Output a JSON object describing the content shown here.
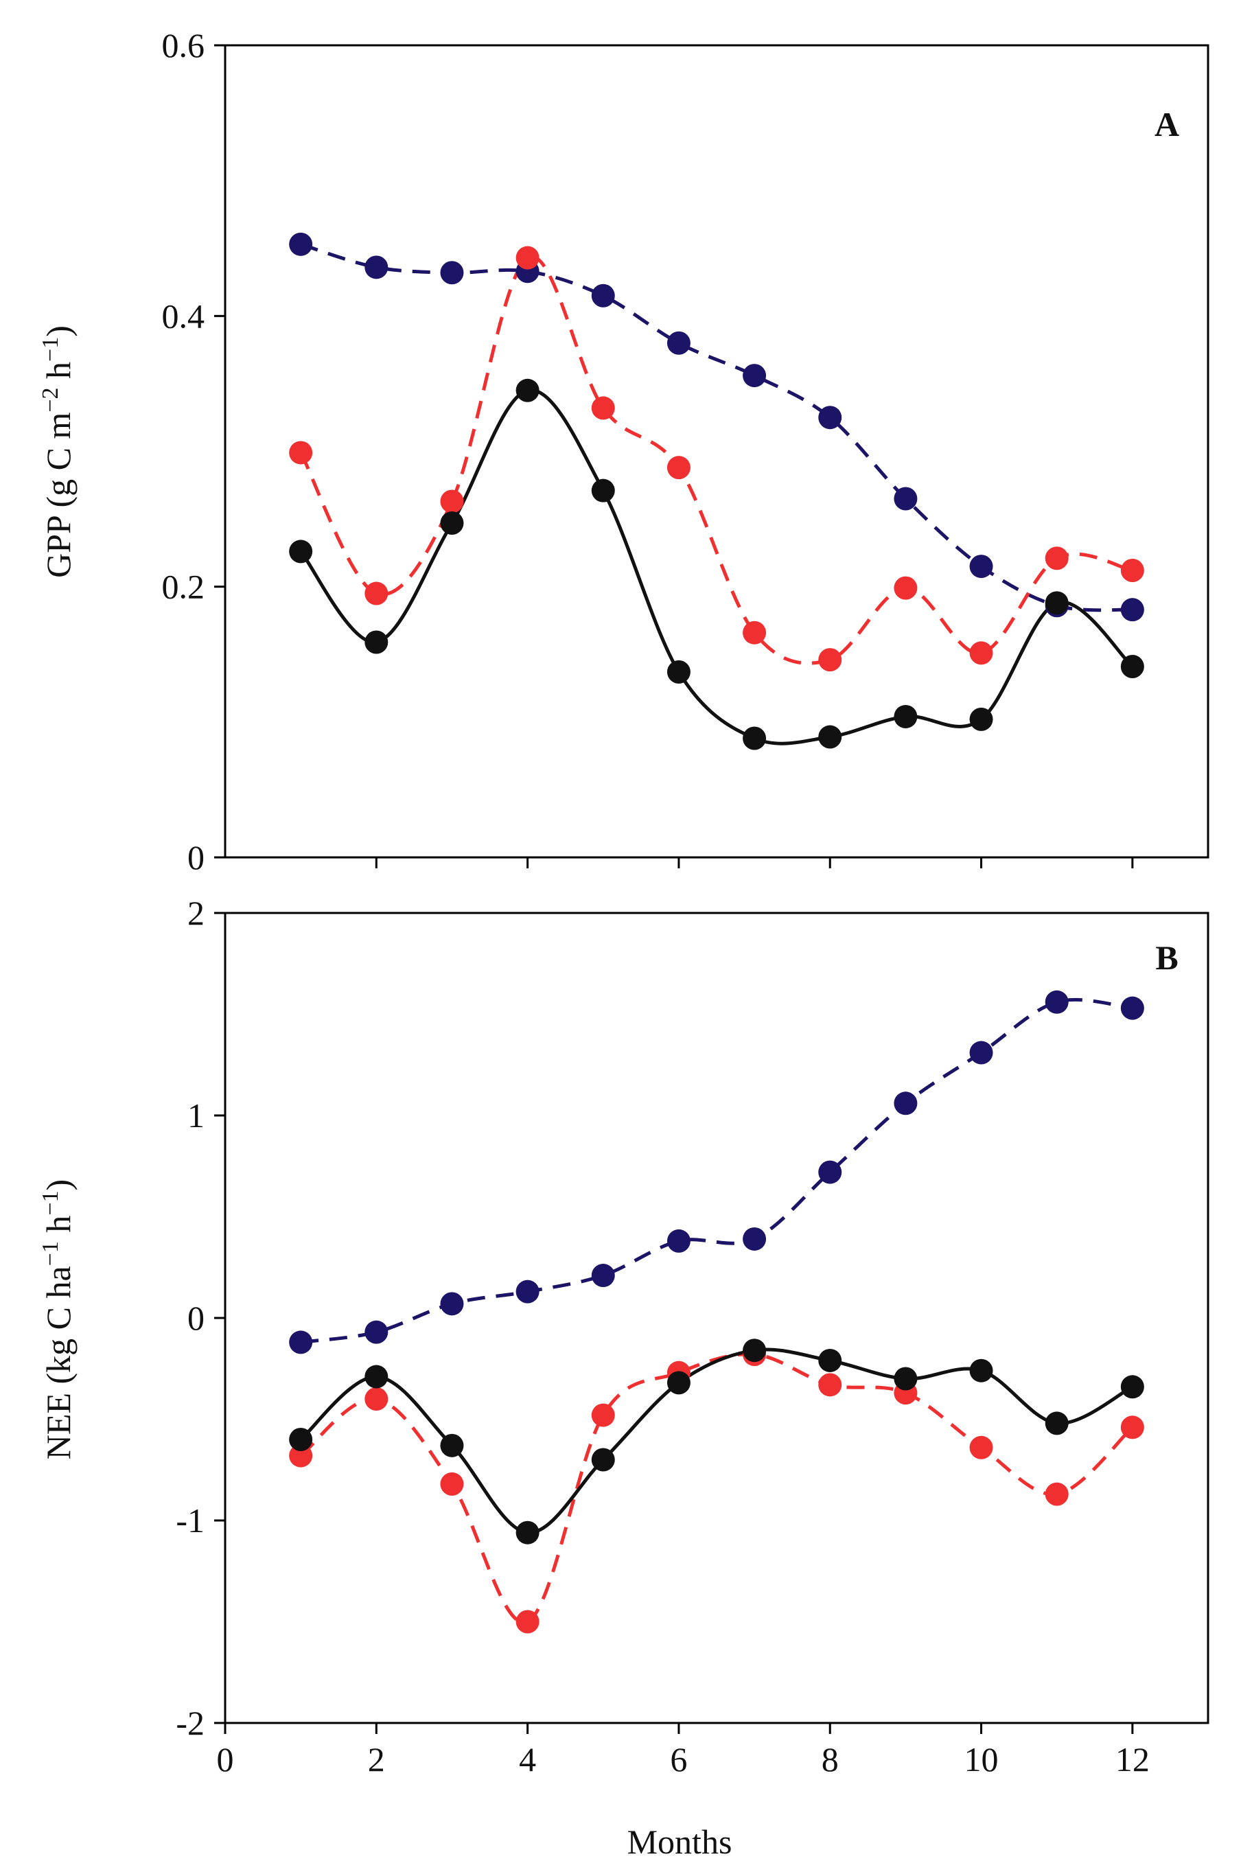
{
  "colors": {
    "black": "#111111",
    "red": "#f03030",
    "navy": "#1c1466"
  },
  "chart_data": [
    {
      "type": "line",
      "panel_label": "A",
      "title": "",
      "xlabel": "",
      "ylabel": "GPP (g C m",
      "ylabel_parts": {
        "main": "GPP (g C m",
        "sup1": "−2",
        "mid": " h",
        "sup2": "−1",
        "end": ")"
      },
      "x": [
        1,
        2,
        3,
        4,
        5,
        6,
        7,
        8,
        9,
        10,
        11,
        12
      ],
      "xlim": [
        0,
        13
      ],
      "ylim": [
        0,
        0.6
      ],
      "yticks": [
        0,
        0.2,
        0.4,
        0.6
      ],
      "ytick_labels": [
        "0",
        "0.2",
        "0.4",
        "0.6"
      ],
      "xticks": [
        2,
        4,
        6,
        8,
        10,
        12
      ],
      "grid": false,
      "legend": "none",
      "series": [
        {
          "name": "black",
          "color": "#111111",
          "style": "solid",
          "values": [
            0.226,
            0.159,
            0.247,
            0.345,
            0.271,
            0.137,
            0.088,
            0.089,
            0.104,
            0.102,
            0.188,
            0.141
          ]
        },
        {
          "name": "red",
          "color": "#f03030",
          "style": "dashed",
          "values": [
            0.299,
            0.195,
            0.263,
            0.443,
            0.332,
            0.288,
            0.166,
            0.146,
            0.199,
            0.151,
            0.221,
            0.212
          ]
        },
        {
          "name": "navy",
          "color": "#1c1466",
          "style": "dashed",
          "values": [
            0.453,
            0.436,
            0.432,
            0.433,
            0.415,
            0.38,
            0.356,
            0.325,
            0.265,
            0.215,
            0.186,
            0.183
          ]
        }
      ]
    },
    {
      "type": "line",
      "panel_label": "B",
      "title": "",
      "xlabel": "Months",
      "ylabel": "NEE (kg C ha",
      "ylabel_parts": {
        "main": "NEE (kg C ha",
        "sup1": "−1",
        "mid": " h",
        "sup2": "−1",
        "end": ")"
      },
      "x": [
        1,
        2,
        3,
        4,
        5,
        6,
        7,
        8,
        9,
        10,
        11,
        12
      ],
      "xlim": [
        0,
        13
      ],
      "ylim": [
        -2,
        2
      ],
      "yticks": [
        -2,
        -1,
        0,
        1,
        2
      ],
      "ytick_labels": [
        "-2",
        "-1",
        "0",
        "1",
        "2"
      ],
      "xticks": [
        0,
        2,
        4,
        6,
        8,
        10,
        12
      ],
      "xtick_labels": [
        "0",
        "2",
        "4",
        "6",
        "8",
        "10",
        "12"
      ],
      "grid": false,
      "legend": "none",
      "series": [
        {
          "name": "black",
          "color": "#111111",
          "style": "solid",
          "values": [
            -0.6,
            -0.29,
            -0.63,
            -1.06,
            -0.7,
            -0.32,
            -0.16,
            -0.21,
            -0.3,
            -0.26,
            -0.52,
            -0.34
          ]
        },
        {
          "name": "red",
          "color": "#f03030",
          "style": "dashed",
          "values": [
            -0.68,
            -0.4,
            -0.82,
            -1.5,
            -0.48,
            -0.27,
            -0.18,
            -0.33,
            -0.37,
            -0.64,
            -0.87,
            -0.54
          ]
        },
        {
          "name": "navy",
          "color": "#1c1466",
          "style": "dashed",
          "values": [
            -0.12,
            -0.07,
            0.07,
            0.13,
            0.21,
            0.38,
            0.39,
            0.72,
            1.06,
            1.31,
            1.56,
            1.53
          ]
        }
      ]
    }
  ]
}
